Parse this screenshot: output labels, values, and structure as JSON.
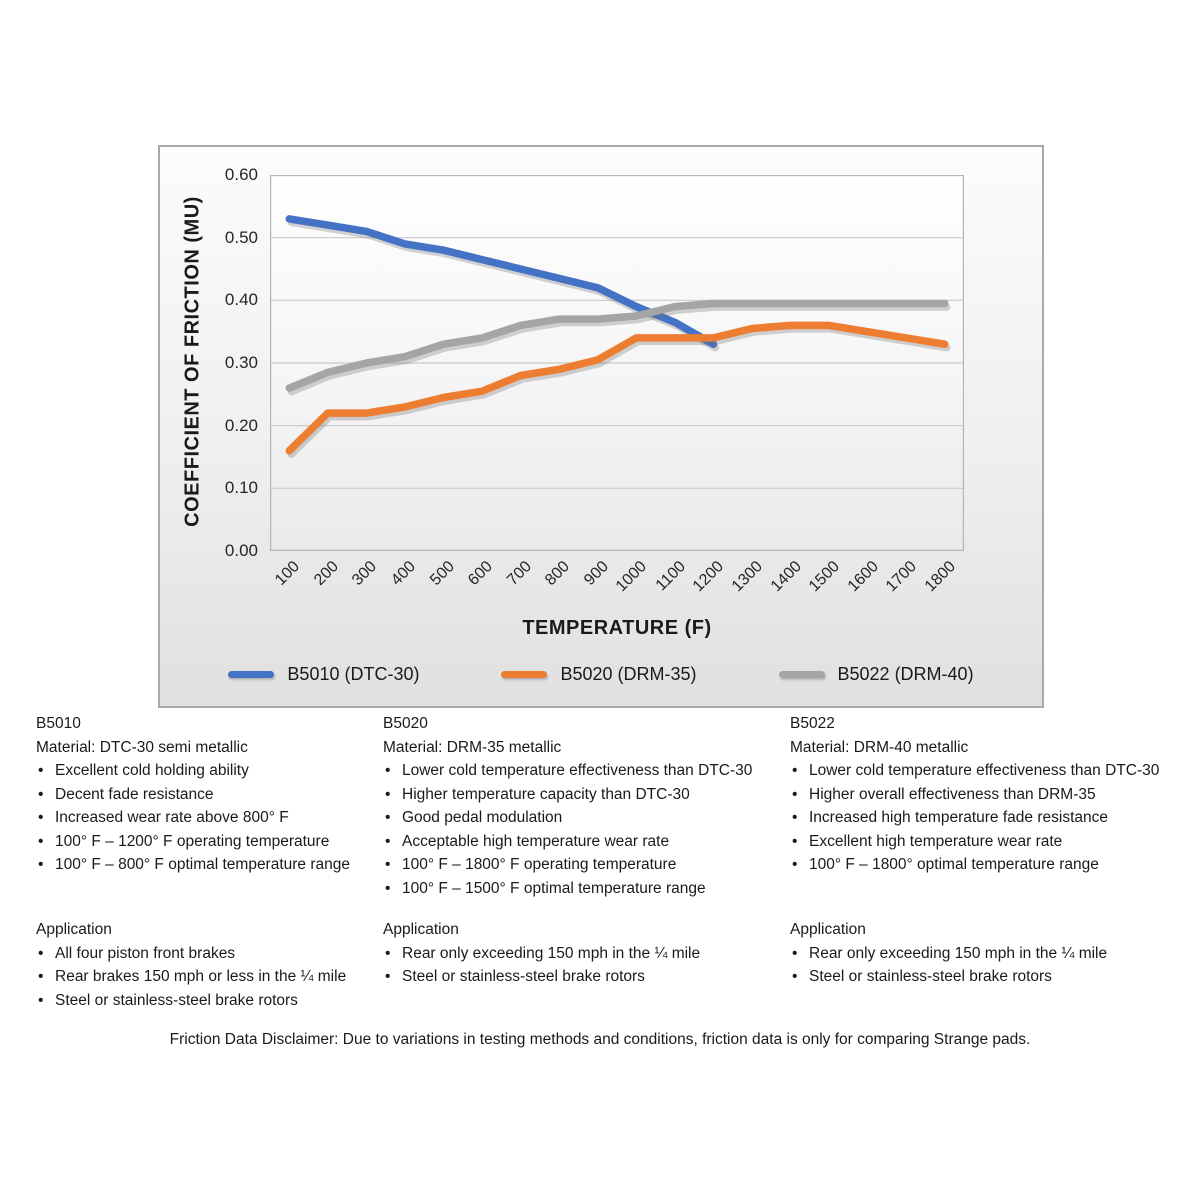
{
  "chart": {
    "y_ticks": [
      "0.60",
      "0.50",
      "0.40",
      "0.30",
      "0.20",
      "0.10",
      "0.00"
    ],
    "grid_color": "#c9c9c9",
    "plot_border_color": "#b5b5b5"
  },
  "chart_data": {
    "type": "line",
    "title": "",
    "xlabel": "TEMPERATURE (F)",
    "ylabel": "COEFFICIENT OF FRICTION (MU)",
    "ylim": [
      0,
      0.6
    ],
    "y_tick_step": 0.1,
    "grid": true,
    "legend_position": "bottom",
    "categories": [
      100,
      200,
      300,
      400,
      500,
      600,
      700,
      800,
      900,
      1000,
      1100,
      1200,
      1300,
      1400,
      1500,
      1600,
      1700,
      1800
    ],
    "series": [
      {
        "name": "B5010 (DTC-30)",
        "color": "#4472C4",
        "values": [
          0.53,
          0.52,
          0.51,
          0.49,
          0.48,
          0.465,
          0.45,
          0.435,
          0.42,
          0.39,
          0.365,
          0.33,
          null,
          null,
          null,
          null,
          null,
          null
        ]
      },
      {
        "name": "B5020 (DRM-35)",
        "color": "#ED7D31",
        "values": [
          0.16,
          0.22,
          0.22,
          0.23,
          0.245,
          0.255,
          0.28,
          0.29,
          0.305,
          0.34,
          0.34,
          0.34,
          0.355,
          0.36,
          0.36,
          0.35,
          0.34,
          0.33
        ]
      },
      {
        "name": "B5022 (DRM-40)",
        "color": "#A5A5A5",
        "values": [
          0.26,
          0.285,
          0.3,
          0.31,
          0.33,
          0.34,
          0.36,
          0.37,
          0.37,
          0.375,
          0.39,
          0.395,
          0.395,
          0.395,
          0.395,
          0.395,
          0.395,
          0.395
        ]
      }
    ]
  },
  "products": [
    {
      "code": "B5010",
      "material": "Material: DTC-30 semi metallic",
      "features": [
        "Excellent cold holding ability",
        "Decent fade resistance",
        "Increased wear rate above 800° F",
        "100° F – 1200° F operating temperature",
        "100° F – 800° F optimal temperature range"
      ],
      "application_title": "Application",
      "applications": [
        "All four piston front brakes",
        "Rear brakes 150 mph or less in the ¼ mile",
        "Steel or stainless-steel brake rotors"
      ]
    },
    {
      "code": "B5020",
      "material": "Material: DRM-35 metallic",
      "features": [
        "Lower cold temperature effectiveness than DTC-30",
        "Higher temperature capacity than DTC-30",
        "Good pedal modulation",
        "Acceptable high temperature wear rate",
        "100° F – 1800° F operating temperature",
        "100° F – 1500° F optimal temperature range"
      ],
      "application_title": "Application",
      "applications": [
        "Rear only exceeding 150 mph in the ¼ mile",
        "Steel or stainless-steel brake rotors"
      ]
    },
    {
      "code": "B5022",
      "material": "Material: DRM-40 metallic",
      "features": [
        "Lower cold temperature effectiveness than DTC-30",
        "Higher overall effectiveness than DRM-35",
        "Increased high temperature fade resistance",
        "Excellent high temperature wear rate",
        "100° F – 1800° optimal temperature range"
      ],
      "application_title": "Application",
      "applications": [
        "Rear only exceeding 150 mph in the ¼ mile",
        "Steel or stainless-steel brake rotors"
      ]
    }
  ],
  "disclaimer": "Friction Data Disclaimer:  Due to variations in testing methods and conditions, friction data is only for comparing Strange pads."
}
